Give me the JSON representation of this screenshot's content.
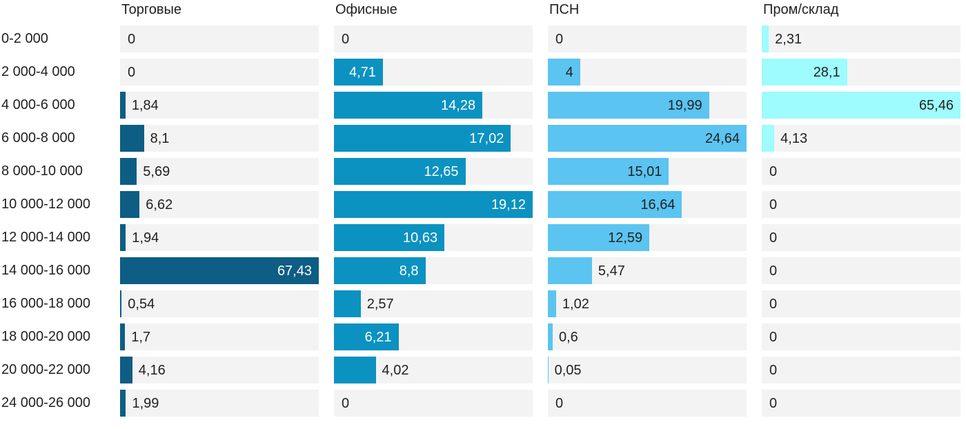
{
  "chart_data": {
    "type": "bar",
    "orientation": "horizontal",
    "layout_hint": "small-multiples: 4 columns, each bar column scaled independently to its own max value; grey track shows full scale; value label inside bar when it fits, otherwise right of bar",
    "grid": false,
    "legend_position": "column headers on top",
    "categories": [
      "0-2 000",
      "2 000-4 000",
      "4 000-6 000",
      "6 000-8 000",
      "8 000-10 000",
      "10 000-12 000",
      "12 000-14 000",
      "14 000-16 000",
      "16 000-18 000",
      "18 000-20 000",
      "20 000-22 000",
      "24 000-26 000"
    ],
    "series": [
      {
        "name": "Торговые",
        "color": "#0d5d85",
        "inside_text_color": "#ffffff",
        "xlim": [
          0,
          67.43
        ],
        "values": [
          0,
          0,
          1.84,
          8.1,
          5.69,
          6.62,
          1.94,
          67.43,
          0.54,
          1.7,
          4.16,
          1.99
        ],
        "display": [
          "0",
          "0",
          "1,84",
          "8,1",
          "5,69",
          "6,62",
          "1,94",
          "67,43",
          "0,54",
          "1,7",
          "4,16",
          "1,99"
        ]
      },
      {
        "name": "Офисные",
        "color": "#0b92c1",
        "inside_text_color": "#ffffff",
        "xlim": [
          0,
          19.12
        ],
        "values": [
          0,
          4.71,
          14.28,
          17.02,
          12.65,
          19.12,
          10.63,
          8.8,
          2.57,
          6.21,
          4.02,
          0
        ],
        "display": [
          "0",
          "4,71",
          "14,28",
          "17,02",
          "12,65",
          "19,12",
          "10,63",
          "8,8",
          "2,57",
          "6,21",
          "4,02",
          "0"
        ]
      },
      {
        "name": "ПСН",
        "color": "#5bc4f1",
        "inside_text_color": "#212121",
        "xlim": [
          0,
          24.64
        ],
        "values": [
          0,
          4,
          19.99,
          24.64,
          15.01,
          16.64,
          12.59,
          5.47,
          1.02,
          0.6,
          0.05,
          0
        ],
        "display": [
          "0",
          "4",
          "19,99",
          "24,64",
          "15,01",
          "16,64",
          "12,59",
          "5,47",
          "1,02",
          "0,6",
          "0,05",
          "0"
        ]
      },
      {
        "name": "Пром/склад",
        "color": "#9efbfe",
        "inside_text_color": "#212121",
        "xlim": [
          0,
          65.46
        ],
        "values": [
          2.31,
          28.1,
          65.46,
          4.13,
          0,
          0,
          0,
          0,
          0,
          0,
          0,
          0
        ],
        "display": [
          "2,31",
          "28,1",
          "65,46",
          "4,13",
          "0",
          "0",
          "0",
          "0",
          "0",
          "0",
          "0",
          "0"
        ]
      }
    ]
  },
  "style": {
    "track_color": "#f3f3f3",
    "text_color": "#212121",
    "background": "#ffffff"
  }
}
